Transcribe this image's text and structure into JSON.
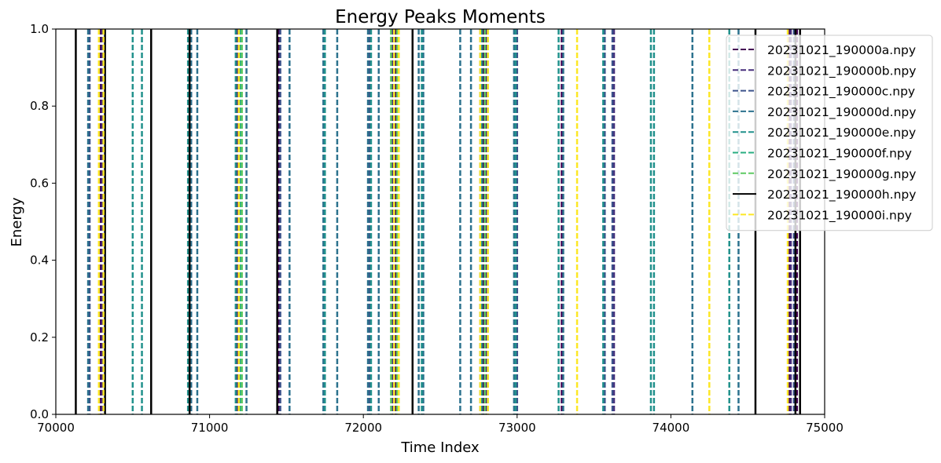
{
  "chart_data": {
    "type": "line",
    "title": "Energy Peaks Moments",
    "xlabel": "Time Index",
    "ylabel": "Energy",
    "xlim": [
      70000,
      75000
    ],
    "ylim": [
      0,
      1
    ],
    "x_ticks": [
      "70000",
      "71000",
      "72000",
      "73000",
      "74000",
      "75000"
    ],
    "y_ticks": [
      "0.0",
      "0.2",
      "0.4",
      "0.6",
      "0.8",
      "1.0"
    ],
    "grid": false,
    "legend_position": "upper-right",
    "series": [
      {
        "name": "20231021_190000a.npy",
        "color": "#440154",
        "style": "dashed",
        "x": [
          70290,
          70880,
          71190,
          71450,
          72210,
          72780,
          73290,
          74770,
          74820
        ]
      },
      {
        "name": "20231021_190000b.npy",
        "color": "#472d7b",
        "style": "dashed",
        "x": [
          70300,
          70860,
          71180,
          72190,
          72800,
          73630,
          74780
        ]
      },
      {
        "name": "20231021_190000c.npy",
        "color": "#3b528b",
        "style": "dashed",
        "x": [
          70220,
          71460,
          72040,
          72760,
          73000,
          73570,
          73620,
          74800
        ]
      },
      {
        "name": "20231021_190000d.npy",
        "color": "#2c728e",
        "style": "dashed",
        "x": [
          70210,
          70880,
          70920,
          71240,
          71520,
          71740,
          71830,
          72030,
          72100,
          72360,
          72390,
          72630,
          72700,
          72980,
          73300,
          74140,
          74440
        ]
      },
      {
        "name": "20231021_190000e.npy",
        "color": "#21918c",
        "style": "dashed",
        "x": [
          70500,
          70560,
          70860,
          71170,
          71750,
          72050,
          72200,
          72380,
          72770,
          72990,
          73270,
          73560,
          73870,
          73890,
          74380
        ]
      },
      {
        "name": "20231021_190000f.npy",
        "color": "#28ae80",
        "style": "dashed",
        "x": [
          71200,
          72230,
          72810
        ]
      },
      {
        "name": "20231021_190000g.npy",
        "color": "#5ec962",
        "style": "dashed",
        "x": [
          71210,
          72180,
          72220,
          72790
        ]
      },
      {
        "name": "20231021_190000h.npy",
        "color": "#000000",
        "style": "solid",
        "x": [
          70130,
          70320,
          70620,
          70870,
          71440,
          72320,
          74550,
          74810,
          74840
        ]
      },
      {
        "name": "20231021_190000i.npy",
        "color": "#fde725",
        "style": "dashed",
        "x": [
          70280,
          70310,
          71190,
          72200,
          72230,
          72760,
          72810,
          73390,
          74250,
          74760
        ]
      }
    ]
  }
}
